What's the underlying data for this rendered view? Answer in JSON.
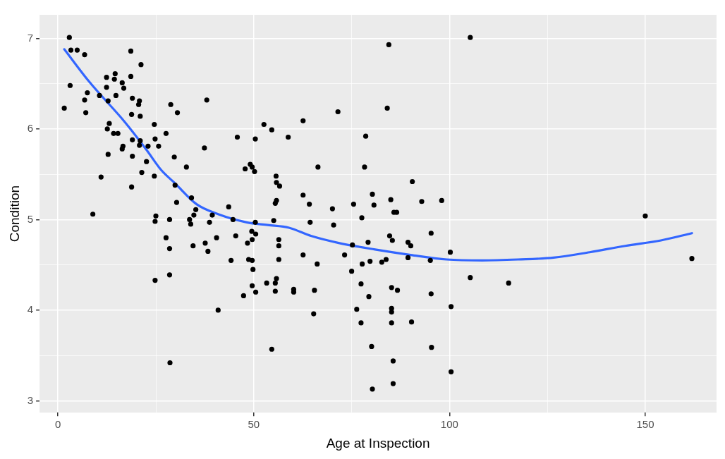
{
  "chart_data": {
    "type": "scatter",
    "xlabel": "Age at Inspection",
    "ylabel": "Condition",
    "xlim": [
      -4.7,
      168.2
    ],
    "ylim": [
      2.87,
      7.26
    ],
    "xticks": [
      0,
      {
        "value": 25,
        "label": null
      },
      50,
      {
        "value": 75,
        "label": null
      },
      100,
      {
        "value": 125,
        "label": null
      },
      150
    ],
    "yticks": [
      3,
      {
        "value": 3.5,
        "label": null
      },
      4,
      {
        "value": 4.5,
        "label": null
      },
      5,
      {
        "value": 5.5,
        "label": null
      },
      6,
      {
        "value": 6.5,
        "label": null
      },
      7
    ],
    "grid": true,
    "legend": false,
    "series": [
      {
        "color": "#000000",
        "marker": "circle",
        "x": [
          1.6,
          2.9,
          3.3,
          3.1,
          4.9,
          6.8,
          6.8,
          7.1,
          7.5,
          8.9,
          10.6,
          11,
          12.4,
          12.4,
          12.8,
          12.6,
          12.8,
          13.1,
          14.2,
          14.6,
          14.4,
          14.8,
          15.3,
          16.4,
          16.8,
          16.6,
          16.4,
          18.6,
          18.6,
          19,
          18.8,
          19,
          19,
          18.8,
          20.8,
          20.6,
          21.2,
          21,
          21,
          20.8,
          21.4,
          22.6,
          23,
          24.6,
          24.8,
          24.6,
          25,
          24.8,
          24.8,
          25.7,
          27.6,
          27.6,
          28.5,
          28.5,
          28.5,
          28.6,
          28.8,
          29.7,
          29.9,
          30.3,
          30.5,
          32.8,
          33.6,
          33.9,
          34.1,
          34.7,
          34.5,
          35.2,
          37.4,
          38,
          37.6,
          38.3,
          38.7,
          39.4,
          40.5,
          40.9,
          43.6,
          44.2,
          44.7,
          45.4,
          45.8,
          47.4,
          47.8,
          48.4,
          48.7,
          49.1,
          49.6,
          49.5,
          49.6,
          49.6,
          49.6,
          49.8,
          50.2,
          50.4,
          50.4,
          50.5,
          50.5,
          52.6,
          53.3,
          54.6,
          54.6,
          55.1,
          55.5,
          55.5,
          55.7,
          55.5,
          55.8,
          55.8,
          55.8,
          56.4,
          56.6,
          56.4,
          56.4,
          58.8,
          60.2,
          60.2,
          62.6,
          62.6,
          62.6,
          64.2,
          64.4,
          65.5,
          65.3,
          66.2,
          66.4,
          70.1,
          70.4,
          71.5,
          73.2,
          75,
          75.2,
          75.5,
          76.3,
          77.4,
          77.4,
          77.6,
          77.7,
          78.3,
          78.6,
          79.2,
          79.4,
          79.7,
          80.1,
          80.3,
          80.3,
          80.7,
          82.7,
          83.8,
          84.1,
          84.5,
          84.7,
          85,
          85.4,
          85.2,
          85.2,
          85.2,
          85.2,
          85.6,
          85.6,
          85.8,
          86.5,
          86.7,
          89.4,
          89.4,
          90.1,
          90.3,
          90.5,
          92.9,
          95.1,
          95.3,
          95.3,
          95.4,
          98,
          100.2,
          100.4,
          100.4,
          105.3,
          105.3,
          115.1,
          150,
          161.9
        ],
        "values": [
          6.23,
          7.01,
          6.87,
          6.48,
          6.87,
          6.82,
          6.32,
          6.18,
          6.4,
          5.06,
          6.37,
          5.47,
          6.57,
          6.46,
          6.31,
          6.0,
          5.72,
          6.06,
          5.95,
          6.61,
          6.55,
          6.37,
          5.95,
          6.51,
          6.45,
          5.81,
          5.78,
          6.86,
          6.58,
          6.34,
          6.16,
          5.88,
          5.7,
          5.36,
          6.31,
          6.27,
          6.71,
          6.14,
          5.87,
          5.82,
          5.52,
          5.64,
          5.81,
          6.05,
          5.89,
          5.48,
          5.04,
          4.98,
          4.33,
          5.81,
          5.95,
          4.8,
          5.0,
          4.68,
          4.39,
          3.42,
          6.27,
          5.69,
          5.38,
          5.19,
          6.18,
          5.58,
          5.0,
          4.95,
          5.24,
          5.05,
          4.71,
          5.11,
          5.79,
          6.32,
          4.74,
          4.65,
          4.97,
          5.05,
          4.8,
          4.0,
          5.14,
          4.55,
          5.0,
          4.82,
          5.91,
          4.16,
          5.56,
          4.74,
          4.56,
          5.61,
          5.58,
          4.87,
          4.78,
          4.55,
          4.27,
          4.45,
          5.53,
          5.89,
          4.97,
          4.84,
          4.2,
          6.05,
          4.3,
          3.57,
          5.99,
          4.99,
          5.18,
          4.3,
          5.48,
          4.21,
          5.41,
          5.21,
          4.35,
          4.78,
          5.37,
          4.71,
          4.56,
          5.91,
          4.23,
          4.2,
          4.61,
          6.09,
          5.27,
          5.17,
          4.97,
          4.22,
          3.96,
          4.51,
          5.58,
          5.12,
          4.94,
          6.19,
          4.61,
          4.43,
          4.72,
          5.17,
          4.01,
          4.29,
          3.86,
          5.02,
          4.51,
          5.58,
          5.92,
          4.75,
          4.15,
          4.54,
          3.6,
          3.13,
          5.28,
          5.16,
          4.53,
          4.56,
          6.23,
          6.93,
          4.82,
          5.22,
          4.77,
          4.25,
          4.02,
          3.98,
          3.86,
          3.44,
          3.19,
          5.08,
          5.08,
          4.22,
          4.75,
          4.58,
          4.71,
          3.87,
          5.42,
          5.2,
          4.55,
          4.85,
          4.18,
          3.59,
          5.21,
          4.64,
          4.04,
          3.32,
          7.01,
          4.36,
          4.3,
          5.04,
          4.57
        ]
      },
      {
        "type": "line",
        "color": "#3366ff",
        "marker": "none",
        "x": [
          1.6,
          8,
          17.2,
          22.6,
          26.3,
          29.9,
          35.4,
          40.9,
          48.2,
          53.6,
          59,
          64.6,
          71.9,
          81,
          90.1,
          99.3,
          108.4,
          117.5,
          126.6,
          135.8,
          144.9,
          154,
          161.9
        ],
        "values": [
          6.88,
          6.52,
          6.07,
          5.77,
          5.55,
          5.4,
          5.17,
          5.06,
          4.97,
          4.94,
          4.91,
          4.82,
          4.74,
          4.67,
          4.61,
          4.56,
          4.55,
          4.56,
          4.58,
          4.64,
          4.71,
          4.77,
          4.85
        ]
      }
    ]
  }
}
